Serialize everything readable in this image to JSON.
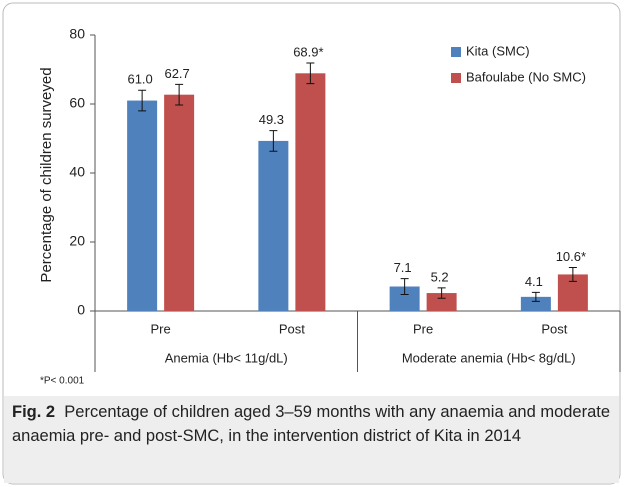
{
  "chart_data": {
    "type": "bar",
    "ylabel": "Percentage of children surveyed",
    "categories": [
      "Pre",
      "Post",
      "Pre",
      "Post"
    ],
    "groups": [
      "Anemia (Hb< 11g/dL)",
      "Moderate anemia (Hb< 8g/dL)"
    ],
    "series": [
      {
        "name": "Kita (SMC)",
        "color": "#4f81bd",
        "values": [
          61.0,
          49.3,
          7.1,
          4.1
        ],
        "value_labels": [
          "61.0",
          "49.3",
          "7.1",
          "4.1"
        ],
        "errors": [
          3,
          3,
          2.3,
          1.3
        ]
      },
      {
        "name": "Bafoulabe (No SMC)",
        "color": "#c0504d",
        "values": [
          62.7,
          68.9,
          5.2,
          10.6
        ],
        "value_labels": [
          "62.7",
          "68.9*",
          "5.2",
          "10.6*"
        ],
        "errors": [
          3,
          3,
          1.5,
          2
        ]
      }
    ],
    "ylim": [
      0,
      80
    ],
    "yticks": [
      0,
      20,
      40,
      60,
      80
    ],
    "footnote": "*P< 0.001"
  },
  "caption": {
    "label": "Fig. 2",
    "text": "Percentage of children aged 3–59 months with any anaemia and moderate anaemia pre- and post-SMC, in the intervention district of Kita in 2014"
  }
}
